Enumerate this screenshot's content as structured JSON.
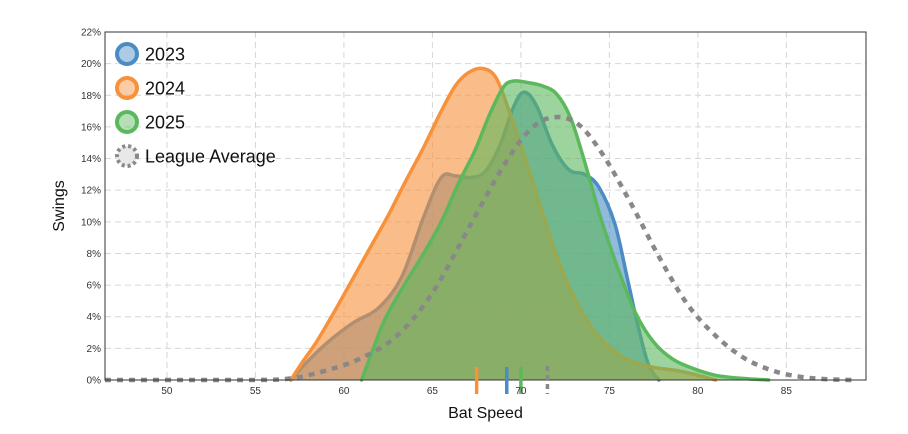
{
  "chart_data": {
    "type": "area",
    "xlabel": "Bat Speed",
    "ylabel": "Swings",
    "xlim": [
      46.5,
      89.5
    ],
    "ylim": [
      0,
      22
    ],
    "x_ticks": [
      50,
      55,
      60,
      65,
      70,
      75,
      80,
      85
    ],
    "y_ticks": [
      0,
      2,
      4,
      6,
      8,
      10,
      12,
      14,
      16,
      18,
      20,
      22
    ],
    "y_tick_suffix": "%",
    "grid": true,
    "legend_position": "top-left",
    "series": [
      {
        "name": "2023",
        "color": "#4a8cc3",
        "mean_marker": 69.2,
        "points": [
          [
            57,
            0
          ],
          [
            57.8,
            1
          ],
          [
            59,
            2.3
          ],
          [
            60.5,
            3.6
          ],
          [
            62,
            4.6
          ],
          [
            63.3,
            6.6
          ],
          [
            64.5,
            10.3
          ],
          [
            65.5,
            12.8
          ],
          [
            66.3,
            12.9
          ],
          [
            67.2,
            12.8
          ],
          [
            68,
            13.2
          ],
          [
            68.8,
            14.8
          ],
          [
            69.6,
            17.3
          ],
          [
            70.2,
            18.2
          ],
          [
            70.9,
            17.3
          ],
          [
            71.8,
            14.8
          ],
          [
            72.7,
            13.3
          ],
          [
            73.6,
            13
          ],
          [
            74.4,
            12.2
          ],
          [
            75.3,
            9.9
          ],
          [
            76,
            6.5
          ],
          [
            76.6,
            3.5
          ],
          [
            77.2,
            1
          ],
          [
            77.8,
            0
          ]
        ]
      },
      {
        "name": "2024",
        "color": "#f7913a",
        "mean_marker": 67.5,
        "points": [
          [
            57,
            0
          ],
          [
            57.7,
            1.2
          ],
          [
            58.5,
            2.5
          ],
          [
            59.5,
            4.4
          ],
          [
            60.5,
            6.4
          ],
          [
            61.5,
            8.4
          ],
          [
            62.5,
            10.4
          ],
          [
            63.5,
            12.6
          ],
          [
            64.5,
            14.7
          ],
          [
            65.5,
            17
          ],
          [
            66.3,
            18.6
          ],
          [
            67,
            19.4
          ],
          [
            67.8,
            19.7
          ],
          [
            68.6,
            19.1
          ],
          [
            69.4,
            16.8
          ],
          [
            70.3,
            13.8
          ],
          [
            71.3,
            10.3
          ],
          [
            72.2,
            7.3
          ],
          [
            73.2,
            4.8
          ],
          [
            74.2,
            3
          ],
          [
            75.2,
            1.9
          ],
          [
            76.2,
            1.2
          ],
          [
            77.5,
            0.8
          ],
          [
            78.8,
            0.6
          ],
          [
            80,
            0.3
          ],
          [
            81,
            0
          ]
        ]
      },
      {
        "name": "2025",
        "color": "#5cb85c",
        "mean_marker": 70,
        "points": [
          [
            61,
            0
          ],
          [
            61.6,
            1.8
          ],
          [
            62.3,
            3.8
          ],
          [
            63.3,
            5.8
          ],
          [
            64.5,
            8
          ],
          [
            65.5,
            10
          ],
          [
            66.5,
            12.5
          ],
          [
            67.4,
            14.5
          ],
          [
            68.2,
            16.7
          ],
          [
            69,
            18.5
          ],
          [
            69.6,
            18.9
          ],
          [
            70.4,
            18.8
          ],
          [
            71.2,
            18.6
          ],
          [
            72,
            18.1
          ],
          [
            72.8,
            16.6
          ],
          [
            73.6,
            13.8
          ],
          [
            74.5,
            10.3
          ],
          [
            75.5,
            7
          ],
          [
            76.5,
            4.2
          ],
          [
            77.5,
            2.4
          ],
          [
            78.6,
            1.3
          ],
          [
            79.8,
            0.7
          ],
          [
            81,
            0.3
          ],
          [
            82.5,
            0.1
          ],
          [
            84,
            0
          ]
        ]
      }
    ],
    "league_average": {
      "name": "League Average",
      "color": "#888888",
      "mean_marker": 71.5,
      "points": [
        [
          46.5,
          0
        ],
        [
          52,
          0
        ],
        [
          55,
          0
        ],
        [
          57,
          0.1
        ],
        [
          59,
          0.6
        ],
        [
          61,
          1.4
        ],
        [
          63,
          2.8
        ],
        [
          65,
          5.5
        ],
        [
          67,
          9.5
        ],
        [
          69,
          13.5
        ],
        [
          70.5,
          15.8
        ],
        [
          71.8,
          16.6
        ],
        [
          73.2,
          16.2
        ],
        [
          74.6,
          14.3
        ],
        [
          76.2,
          11.2
        ],
        [
          77.8,
          7.8
        ],
        [
          79.4,
          4.8
        ],
        [
          81,
          2.8
        ],
        [
          82.6,
          1.4
        ],
        [
          84.2,
          0.6
        ],
        [
          85.8,
          0.2
        ],
        [
          87.3,
          0.05
        ],
        [
          88.8,
          0
        ]
      ]
    }
  }
}
